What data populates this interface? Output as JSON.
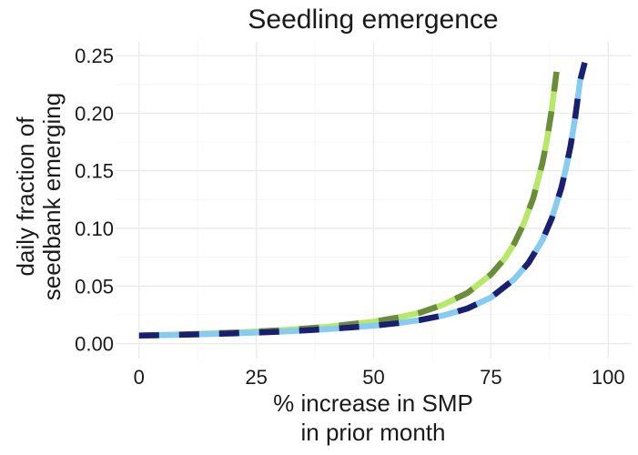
{
  "chart_data": {
    "type": "line",
    "title": "Seedling emergence",
    "xlabel": [
      "% increase in SMP",
      "in prior month"
    ],
    "ylabel": [
      "daily fraction of",
      "seedbank emerging"
    ],
    "xlim": [
      -5,
      105
    ],
    "ylim": [
      -0.013,
      0.262
    ],
    "x_ticks": [
      0,
      25,
      50,
      75,
      100
    ],
    "x_tick_labels": [
      "0",
      "25",
      "50",
      "75",
      "100"
    ],
    "y_ticks": [
      0.0,
      0.05,
      0.1,
      0.15,
      0.2,
      0.25
    ],
    "y_tick_labels": [
      "0.00",
      "0.05",
      "0.10",
      "0.15",
      "0.20",
      "0.25"
    ],
    "grid": true,
    "legend": "none",
    "series": [
      {
        "color": "#b8e86a",
        "dash_color": "#6b8c3a",
        "x": [
          0,
          10,
          20,
          30,
          40,
          50,
          55,
          60,
          65,
          70,
          75,
          78,
          80,
          82,
          84,
          86,
          87,
          88,
          89
        ],
        "values": [
          0.007,
          0.008,
          0.0095,
          0.0115,
          0.0145,
          0.019,
          0.0225,
          0.027,
          0.034,
          0.044,
          0.06,
          0.074,
          0.087,
          0.104,
          0.126,
          0.157,
          0.178,
          0.204,
          0.236
        ]
      },
      {
        "color": "#87cbf0",
        "dash_color": "#1a1f6e",
        "x": [
          0,
          10,
          20,
          30,
          40,
          50,
          55,
          60,
          65,
          70,
          75,
          80,
          83,
          86,
          88,
          90,
          91,
          92,
          93,
          94,
          95
        ],
        "values": [
          0.007,
          0.0077,
          0.0088,
          0.0103,
          0.0125,
          0.0155,
          0.0177,
          0.0205,
          0.0245,
          0.0305,
          0.04,
          0.056,
          0.07,
          0.09,
          0.109,
          0.135,
          0.152,
          0.172,
          0.197,
          0.228,
          0.244
        ]
      }
    ]
  }
}
